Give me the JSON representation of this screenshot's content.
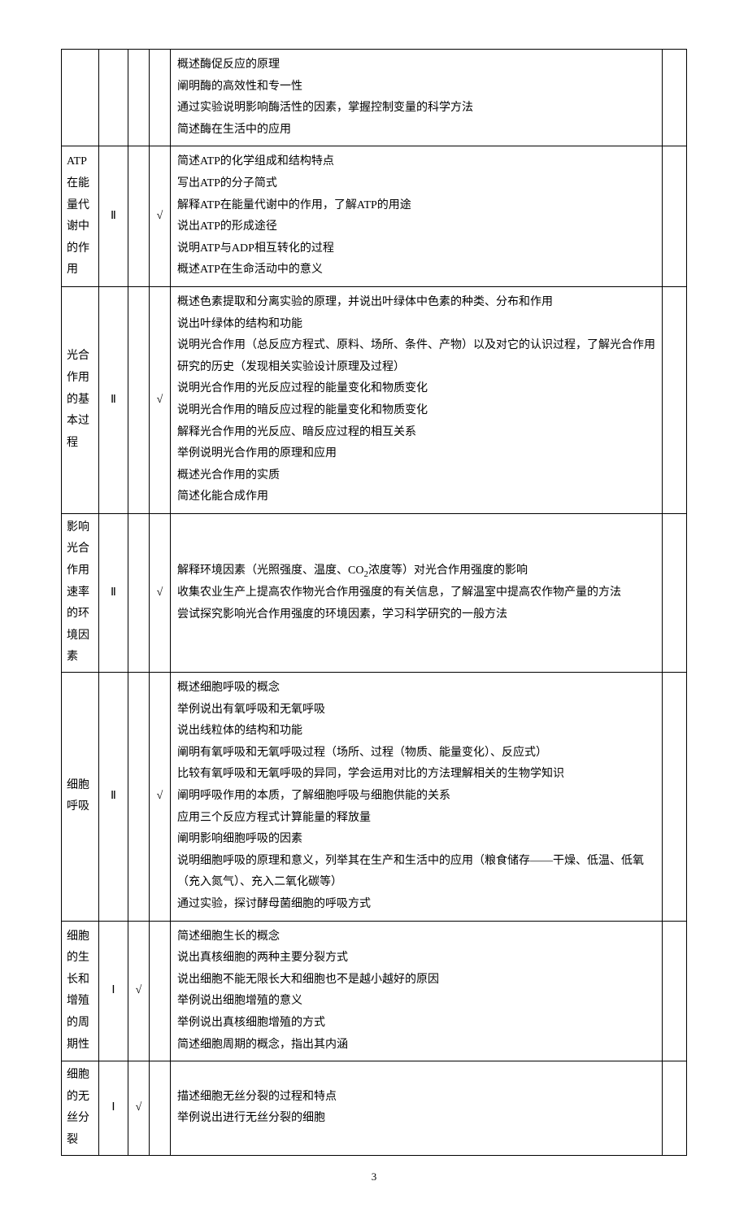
{
  "page_number": "3",
  "check": "√",
  "levels": {
    "I": "Ⅰ",
    "II": "Ⅱ"
  },
  "rows": [
    {
      "topic": "",
      "level": "",
      "col3": "",
      "col4": "",
      "lines": [
        "概述酶促反应的原理",
        "阐明酶的高效性和专一性",
        "通过实验说明影响酶活性的因素，掌握控制变量的科学方法",
        "简述酶在生活中的应用"
      ]
    },
    {
      "topic": "ATP在能量代谢中的作用",
      "level": "Ⅱ",
      "col3": "",
      "col4": "√",
      "lines": [
        "简述ATP的化学组成和结构特点",
        "写出ATP的分子简式",
        "解释ATP在能量代谢中的作用，了解ATP的用途",
        "说出ATP的形成途径",
        "说明ATP与ADP相互转化的过程",
        "概述ATP在生命活动中的意义"
      ]
    },
    {
      "topic": "光合作用的基本过程",
      "level": "Ⅱ",
      "col3": "",
      "col4": "√",
      "lines": [
        "概述色素提取和分离实验的原理，并说出叶绿体中色素的种类、分布和作用",
        "说出叶绿体的结构和功能",
        "说明光合作用（总反应方程式、原料、场所、条件、产物）以及对它的认识过程，了解光合作用研究的历史（发现相关实验设计原理及过程）",
        "说明光合作用的光反应过程的能量变化和物质变化",
        "说明光合作用的暗反应过程的能量变化和物质变化",
        "解释光合作用的光反应、暗反应过程的相互关系",
        "举例说明光合作用的原理和应用",
        "概述光合作用的实质",
        "简述化能合成作用"
      ]
    },
    {
      "topic": "影响光合作用速率的环境因素",
      "level": "Ⅱ",
      "col3": "",
      "col4": "√",
      "lines": [
        "解释环境因素（光照强度、温度、CO₂浓度等）对光合作用强度的影响",
        "收集农业生产上提高农作物光合作用强度的有关信息，了解温室中提高农作物产量的方法",
        "尝试探究影响光合作用强度的环境因素，学习科学研究的一般方法"
      ]
    },
    {
      "topic": "细胞呼吸",
      "level": "Ⅱ",
      "col3": "",
      "col4": "√",
      "lines": [
        "概述细胞呼吸的概念",
        "举例说出有氧呼吸和无氧呼吸",
        "说出线粒体的结构和功能",
        "阐明有氧呼吸和无氧呼吸过程（场所、过程（物质、能量变化）、反应式）",
        "比较有氧呼吸和无氧呼吸的异同，学会运用对比的方法理解相关的生物学知识",
        "阐明呼吸作用的本质，了解细胞呼吸与细胞供能的关系",
        "应用三个反应方程式计算能量的释放量",
        "阐明影响细胞呼吸的因素",
        "说明细胞呼吸的原理和意义，列举其在生产和生活中的应用（粮食储存——干燥、低温、低氧（充入氮气）、充入二氧化碳等）",
        "通过实验，探讨酵母菌细胞的呼吸方式"
      ]
    },
    {
      "topic": "细胞的生长和增殖的周期性",
      "level": "Ⅰ",
      "col3": "√",
      "col4": "",
      "lines": [
        "简述细胞生长的概念",
        "说出真核细胞的两种主要分裂方式",
        "说出细胞不能无限长大和细胞也不是越小越好的原因",
        "举例说出细胞增殖的意义",
        "举例说出真核细胞增殖的方式",
        "简述细胞周期的概念，指出其内涵"
      ]
    },
    {
      "topic": "细胞的无丝分裂",
      "level": "Ⅰ",
      "col3": "√",
      "col4": "",
      "lines": [
        "描述细胞无丝分裂的过程和特点",
        "举例说出进行无丝分裂的细胞"
      ]
    }
  ]
}
